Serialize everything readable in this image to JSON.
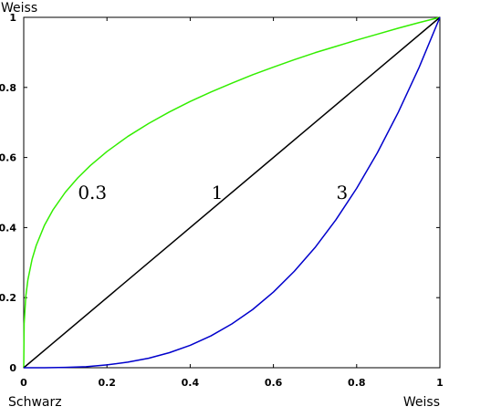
{
  "chart_data": {
    "type": "line",
    "xlim": [
      0,
      1
    ],
    "ylim": [
      0,
      1
    ],
    "grid": false,
    "x_ticks": [
      "0",
      "0.2",
      "0.4",
      "0.6",
      "0.8",
      "1"
    ],
    "y_ticks": [
      "0",
      "0.2",
      "0.4",
      "0.6",
      "0.8",
      "1"
    ],
    "x_ticks_values": [
      0,
      0.2,
      0.4,
      0.6,
      0.8,
      1
    ],
    "y_ticks_values": [
      0,
      0.2,
      0.4,
      0.6,
      0.8,
      1
    ],
    "xlabel_left": "Schwarz",
    "xlabel_right": "Weiss",
    "ylabel_top": "Weiss",
    "series": [
      {
        "name": "0.3",
        "color": "#33ee00",
        "x": [
          0,
          0.001,
          0.005,
          0.01,
          0.02,
          0.03,
          0.05,
          0.07,
          0.1,
          0.13,
          0.16,
          0.2,
          0.25,
          0.3,
          0.35,
          0.4,
          0.45,
          0.5,
          0.55,
          0.6,
          0.65,
          0.7,
          0.75,
          0.8,
          0.85,
          0.9,
          0.95,
          1
        ],
        "y": [
          0,
          0.126,
          0.204,
          0.251,
          0.309,
          0.349,
          0.407,
          0.45,
          0.501,
          0.542,
          0.577,
          0.617,
          0.66,
          0.697,
          0.73,
          0.76,
          0.787,
          0.812,
          0.836,
          0.858,
          0.879,
          0.899,
          0.917,
          0.935,
          0.952,
          0.969,
          0.985,
          1
        ],
        "label_x": 0.165,
        "label_y": 0.5
      },
      {
        "name": "1",
        "color": "#000000",
        "x": [
          0,
          1
        ],
        "y": [
          0,
          1
        ],
        "label_x": 0.465,
        "label_y": 0.5
      },
      {
        "name": "3",
        "color": "#0000cc",
        "x": [
          0,
          0.05,
          0.1,
          0.15,
          0.2,
          0.25,
          0.3,
          0.35,
          0.4,
          0.45,
          0.5,
          0.55,
          0.6,
          0.65,
          0.7,
          0.75,
          0.8,
          0.85,
          0.9,
          0.95,
          1
        ],
        "y": [
          0,
          0.0001,
          0.001,
          0.003,
          0.008,
          0.016,
          0.027,
          0.043,
          0.064,
          0.091,
          0.125,
          0.166,
          0.216,
          0.275,
          0.343,
          0.422,
          0.512,
          0.614,
          0.729,
          0.857,
          1
        ],
        "label_x": 0.765,
        "label_y": 0.5
      }
    ]
  }
}
